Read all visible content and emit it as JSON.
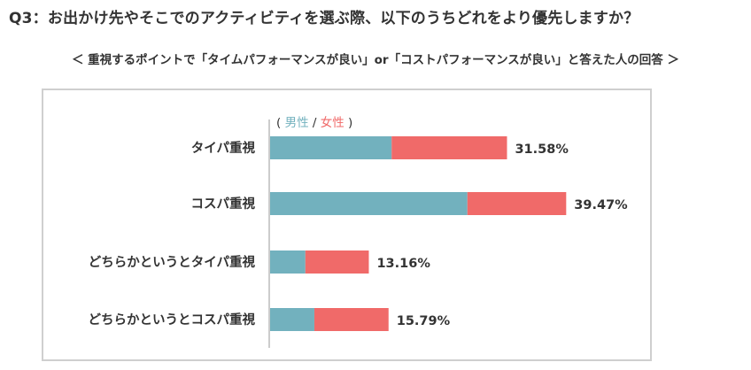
{
  "title": "Q3：お出かけ先やそこでのアクティビティを選ぶ際、以下のうちどれをより優先しますか？",
  "subtitle": "＜ 重視するポイントで「タイムパフォーマンスが良い」or「コストパフォーマンスが良い」と答えた人の回答 ＞",
  "legend": {
    "open": "(",
    "male": "男性",
    "sep": " / ",
    "female": "女性",
    "close": ")"
  },
  "colors": {
    "male": "#72b1be",
    "female": "#f06a69",
    "axis": "#cccccc",
    "frame": "#cfcfcf"
  },
  "chart_data": {
    "type": "bar",
    "orientation": "horizontal",
    "stacked": true,
    "categories": [
      "タイパ重視",
      "コスパ重視",
      "どちらかというとタイパ重視",
      "どちらかというとコスパ重視"
    ],
    "series": [
      {
        "name": "男性",
        "values": [
          16.2,
          26.3,
          4.7,
          5.9
        ]
      },
      {
        "name": "女性",
        "values": [
          15.38,
          13.17,
          8.46,
          9.89
        ]
      }
    ],
    "totals": [
      31.58,
      39.47,
      13.16,
      15.79
    ],
    "total_labels": [
      "31.58%",
      "39.47%",
      "13.16%",
      "15.79%"
    ],
    "xlim": [
      0,
      50
    ],
    "grid": false,
    "legend_position": "top-left"
  }
}
